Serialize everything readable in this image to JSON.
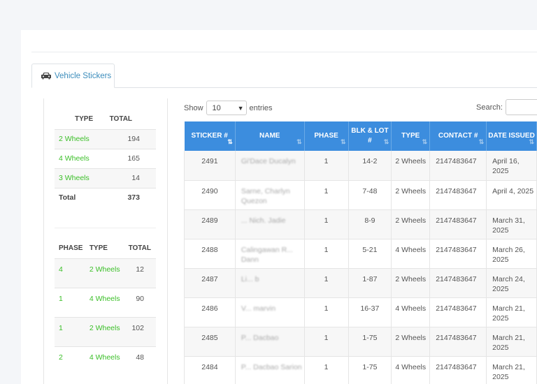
{
  "tab": {
    "icon": "car-icon",
    "label": "Vehicle Stickers"
  },
  "summary_type": {
    "headers": [
      "TYPE",
      "TOTAL"
    ],
    "rows": [
      {
        "type": "2 Wheels",
        "total": "194"
      },
      {
        "type": "4 Wheels",
        "total": "165"
      },
      {
        "type": "3 Wheels",
        "total": "14"
      }
    ],
    "total_row": {
      "label": "Total",
      "total": "373"
    }
  },
  "summary_phase": {
    "headers": [
      "PHASE",
      "TYPE",
      "TOTAL"
    ],
    "rows": [
      {
        "phase": "4",
        "type": "2 Wheels",
        "total": "12"
      },
      {
        "phase": "1",
        "type": "4 Wheels",
        "total": "90"
      },
      {
        "phase": "1",
        "type": "2 Wheels",
        "total": "102"
      },
      {
        "phase": "2",
        "type": "4 Wheels",
        "total": "48"
      }
    ]
  },
  "controls": {
    "show_label": "Show",
    "entries_value": "10",
    "entries_label": "entries",
    "search_label": "Search:"
  },
  "table": {
    "headers": [
      "STICKER #",
      "NAME",
      "PHASE",
      "BLK & LOT #",
      "TYPE",
      "CONTACT #",
      "DATE ISSUED"
    ],
    "rows": [
      {
        "sticker": "2491",
        "name": "Gi'Dace Ducalyn",
        "phase": "1",
        "blk_lot": "14-2",
        "type": "2 Wheels",
        "contact": "2147483647",
        "date": "April 16, 2025"
      },
      {
        "sticker": "2490",
        "name": "Sarne, Charlyn Quezon",
        "phase": "1",
        "blk_lot": "7-48",
        "type": "2 Wheels",
        "contact": "2147483647",
        "date": "April 4, 2025"
      },
      {
        "sticker": "2489",
        "name": "... Nich. Jadie",
        "phase": "1",
        "blk_lot": "8-9",
        "type": "2 Wheels",
        "contact": "2147483647",
        "date": "March 31, 2025"
      },
      {
        "sticker": "2488",
        "name": "Calingawan R... Dann",
        "phase": "1",
        "blk_lot": "5-21",
        "type": "4 Wheels",
        "contact": "2147483647",
        "date": "March 26, 2025"
      },
      {
        "sticker": "2487",
        "name": "Li... b",
        "phase": "1",
        "blk_lot": "1-87",
        "type": "2 Wheels",
        "contact": "2147483647",
        "date": "March 24, 2025"
      },
      {
        "sticker": "2486",
        "name": "V... marvin",
        "phase": "1",
        "blk_lot": "16-37",
        "type": "4 Wheels",
        "contact": "2147483647",
        "date": "March 21, 2025"
      },
      {
        "sticker": "2485",
        "name": "P... Dacbao",
        "phase": "1",
        "blk_lot": "1-75",
        "type": "2 Wheels",
        "contact": "2147483647",
        "date": "March 21, 2025"
      },
      {
        "sticker": "2484",
        "name": "P... Dacbao Sarion",
        "phase": "1",
        "blk_lot": "1-75",
        "type": "4 Wheels",
        "contact": "2147483647",
        "date": "March 21, 2025"
      }
    ]
  }
}
